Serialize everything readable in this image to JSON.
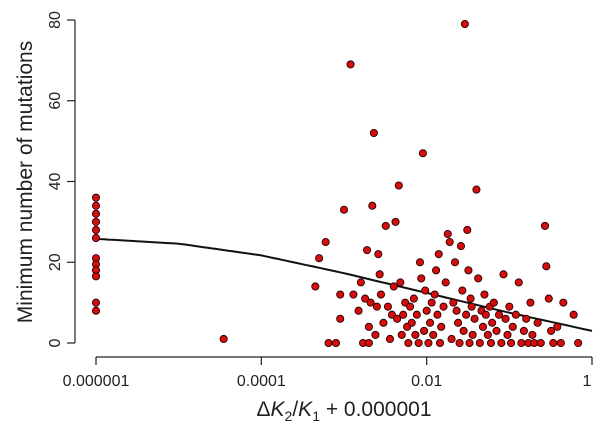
{
  "chart_data": {
    "type": "scatter",
    "title": "",
    "xlabel_parts": {
      "delta": "Δ",
      "k": "K",
      "sub2": "2",
      "slash": "/",
      "k1": "K",
      "sub1": "1",
      "offset": " + 0.000001"
    },
    "ylabel": "Minimum number of mutations",
    "x_scale": "log10",
    "xlim": [
      1e-06,
      1
    ],
    "ylim": [
      0,
      80
    ],
    "x_ticks": [
      1e-06,
      0.0001,
      0.01,
      1
    ],
    "x_tick_labels": [
      "0.000001",
      "0.0001",
      "0.01",
      "1"
    ],
    "y_ticks": [
      0,
      20,
      40,
      60,
      80
    ],
    "y_tick_labels": [
      "0",
      "20",
      "40",
      "60",
      "80"
    ],
    "grid": false,
    "legend": "none",
    "point_color": "#d40d0d",
    "trend_line": {
      "x": [
        1e-06,
        1e-05,
        0.0001,
        0.001,
        0.01,
        0.1,
        1
      ],
      "y": [
        25.8,
        24.6,
        21.7,
        17.3,
        12.4,
        7.5,
        3
      ]
    },
    "points": [
      [
        1e-06,
        36
      ],
      [
        1e-06,
        34
      ],
      [
        1e-06,
        32
      ],
      [
        1e-06,
        30
      ],
      [
        1e-06,
        28
      ],
      [
        1e-06,
        26
      ],
      [
        1e-06,
        21
      ],
      [
        1e-06,
        19.5
      ],
      [
        1e-06,
        18
      ],
      [
        1e-06,
        16.5
      ],
      [
        1e-06,
        10
      ],
      [
        1e-06,
        8
      ],
      [
        3.5e-05,
        1
      ],
      [
        0.00045,
        14
      ],
      [
        0.0005,
        21
      ],
      [
        0.0006,
        25
      ],
      [
        0.00065,
        0
      ],
      [
        0.0008,
        0
      ],
      [
        0.0009,
        6
      ],
      [
        0.0009,
        12
      ],
      [
        0.001,
        33
      ],
      [
        0.0012,
        69
      ],
      [
        0.0013,
        12
      ],
      [
        0.0015,
        8
      ],
      [
        0.0016,
        15
      ],
      [
        0.0017,
        0
      ],
      [
        0.0018,
        11
      ],
      [
        0.0019,
        23
      ],
      [
        0.002,
        0
      ],
      [
        0.002,
        4
      ],
      [
        0.0021,
        10
      ],
      [
        0.0022,
        34
      ],
      [
        0.0023,
        52
      ],
      [
        0.0024,
        2
      ],
      [
        0.0025,
        9
      ],
      [
        0.0026,
        22
      ],
      [
        0.0027,
        17
      ],
      [
        0.0028,
        12
      ],
      [
        0.003,
        5
      ],
      [
        0.0032,
        29
      ],
      [
        0.0034,
        9
      ],
      [
        0.0036,
        1
      ],
      [
        0.0038,
        7
      ],
      [
        0.004,
        14
      ],
      [
        0.0042,
        30
      ],
      [
        0.0044,
        6
      ],
      [
        0.0046,
        39
      ],
      [
        0.0048,
        15
      ],
      [
        0.005,
        2
      ],
      [
        0.0052,
        7
      ],
      [
        0.0055,
        10
      ],
      [
        0.0058,
        4
      ],
      [
        0.006,
        0
      ],
      [
        0.0063,
        9
      ],
      [
        0.0066,
        5
      ],
      [
        0.007,
        11
      ],
      [
        0.0073,
        2
      ],
      [
        0.0076,
        7
      ],
      [
        0.008,
        0
      ],
      [
        0.0083,
        20
      ],
      [
        0.0086,
        16
      ],
      [
        0.009,
        47
      ],
      [
        0.0093,
        3
      ],
      [
        0.0096,
        13
      ],
      [
        0.01,
        8
      ],
      [
        0.0105,
        0
      ],
      [
        0.011,
        5
      ],
      [
        0.0115,
        10
      ],
      [
        0.012,
        2
      ],
      [
        0.0125,
        12
      ],
      [
        0.013,
        18
      ],
      [
        0.0135,
        7
      ],
      [
        0.014,
        22
      ],
      [
        0.0145,
        0
      ],
      [
        0.015,
        4
      ],
      [
        0.016,
        9
      ],
      [
        0.017,
        15
      ],
      [
        0.018,
        27
      ],
      [
        0.019,
        25
      ],
      [
        0.02,
        1
      ],
      [
        0.021,
        10
      ],
      [
        0.022,
        20
      ],
      [
        0.023,
        8
      ],
      [
        0.024,
        5
      ],
      [
        0.025,
        0
      ],
      [
        0.026,
        24
      ],
      [
        0.027,
        13
      ],
      [
        0.028,
        3
      ],
      [
        0.029,
        79
      ],
      [
        0.03,
        7
      ],
      [
        0.031,
        28
      ],
      [
        0.032,
        18
      ],
      [
        0.033,
        0
      ],
      [
        0.034,
        11
      ],
      [
        0.035,
        9
      ],
      [
        0.036,
        2
      ],
      [
        0.038,
        6
      ],
      [
        0.04,
        38
      ],
      [
        0.042,
        16
      ],
      [
        0.044,
        0
      ],
      [
        0.046,
        8
      ],
      [
        0.048,
        4
      ],
      [
        0.05,
        12
      ],
      [
        0.052,
        7
      ],
      [
        0.055,
        2
      ],
      [
        0.058,
        9
      ],
      [
        0.06,
        0
      ],
      [
        0.062,
        5
      ],
      [
        0.065,
        10
      ],
      [
        0.07,
        3
      ],
      [
        0.075,
        7
      ],
      [
        0.08,
        0
      ],
      [
        0.085,
        17
      ],
      [
        0.09,
        6
      ],
      [
        0.095,
        2
      ],
      [
        0.1,
        9
      ],
      [
        0.105,
        0
      ],
      [
        0.11,
        4
      ],
      [
        0.12,
        7
      ],
      [
        0.13,
        15
      ],
      [
        0.14,
        0
      ],
      [
        0.15,
        3
      ],
      [
        0.16,
        6
      ],
      [
        0.17,
        0
      ],
      [
        0.18,
        10
      ],
      [
        0.19,
        2
      ],
      [
        0.2,
        0
      ],
      [
        0.22,
        5
      ],
      [
        0.24,
        0
      ],
      [
        0.27,
        29
      ],
      [
        0.28,
        19
      ],
      [
        0.3,
        11
      ],
      [
        0.32,
        3
      ],
      [
        0.34,
        0
      ],
      [
        0.38,
        4
      ],
      [
        0.42,
        0
      ],
      [
        0.45,
        10
      ],
      [
        0.6,
        7
      ],
      [
        0.68,
        0
      ]
    ]
  }
}
